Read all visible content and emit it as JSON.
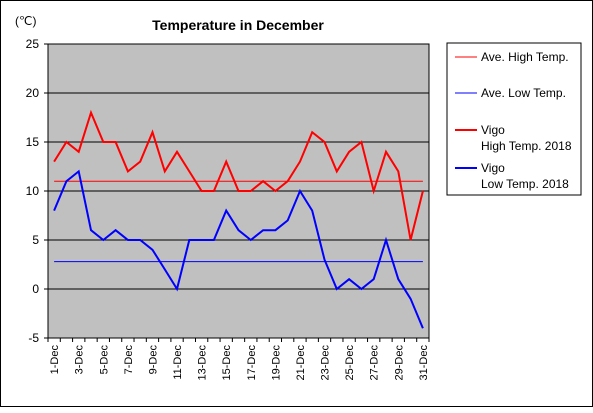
{
  "chart_data": {
    "type": "line",
    "title": "Temperature in December",
    "unit_label": "(℃)",
    "ylim": [
      -5,
      25
    ],
    "yticks": [
      "25",
      "20",
      "15",
      "10",
      "5",
      "0",
      "-5"
    ],
    "ytick_values": [
      25,
      20,
      15,
      10,
      5,
      0,
      -5
    ],
    "grid": "horizontal",
    "legend_position": "right",
    "plot_background": "#c0c0c0",
    "categories": [
      "1-Dec",
      "2-Dec",
      "3-Dec",
      "4-Dec",
      "5-Dec",
      "6-Dec",
      "7-Dec",
      "8-Dec",
      "9-Dec",
      "10-Dec",
      "11-Dec",
      "12-Dec",
      "13-Dec",
      "14-Dec",
      "15-Dec",
      "16-Dec",
      "17-Dec",
      "18-Dec",
      "19-Dec",
      "20-Dec",
      "21-Dec",
      "22-Dec",
      "23-Dec",
      "24-Dec",
      "25-Dec",
      "26-Dec",
      "27-Dec",
      "28-Dec",
      "29-Dec",
      "30-Dec",
      "31-Dec"
    ],
    "xtick_labels": [
      "1-Dec",
      "3-Dec",
      "5-Dec",
      "7-Dec",
      "9-Dec",
      "11-Dec",
      "13-Dec",
      "15-Dec",
      "17-Dec",
      "19-Dec",
      "21-Dec",
      "23-Dec",
      "25-Dec",
      "27-Dec",
      "29-Dec",
      "31-Dec"
    ],
    "xtick_indices": [
      0,
      2,
      4,
      6,
      8,
      10,
      12,
      14,
      16,
      18,
      20,
      22,
      24,
      26,
      28,
      30
    ],
    "series": [
      {
        "name": "Ave. High Temp.",
        "legend_lines": [
          "Ave. High Temp."
        ],
        "color": "#ff0000",
        "thick": false,
        "values": [
          11,
          11,
          11,
          11,
          11,
          11,
          11,
          11,
          11,
          11,
          11,
          11,
          11,
          11,
          11,
          11,
          11,
          11,
          11,
          11,
          11,
          11,
          11,
          11,
          11,
          11,
          11,
          11,
          11,
          11,
          11
        ]
      },
      {
        "name": "Ave. Low Temp.",
        "legend_lines": [
          "Ave. Low Temp."
        ],
        "color": "#0000ff",
        "thick": false,
        "values": [
          2.8,
          2.8,
          2.8,
          2.8,
          2.8,
          2.8,
          2.8,
          2.8,
          2.8,
          2.8,
          2.8,
          2.8,
          2.8,
          2.8,
          2.8,
          2.8,
          2.8,
          2.8,
          2.8,
          2.8,
          2.8,
          2.8,
          2.8,
          2.8,
          2.8,
          2.8,
          2.8,
          2.8,
          2.8,
          2.8,
          2.8
        ]
      },
      {
        "name": "Vigo High Temp. 2018",
        "legend_lines": [
          "Vigo",
          "High Temp. 2018"
        ],
        "color": "#ff0000",
        "thick": true,
        "values": [
          13,
          15,
          14,
          18,
          15,
          15,
          12,
          13,
          16,
          12,
          14,
          12,
          10,
          10,
          13,
          10,
          10,
          11,
          10,
          11,
          13,
          16,
          15,
          12,
          14,
          15,
          10,
          14,
          12,
          5,
          10
        ]
      },
      {
        "name": "Vigo Low Temp. 2018",
        "legend_lines": [
          "Vigo",
          "Low Temp. 2018"
        ],
        "color": "#0000ff",
        "thick": true,
        "values": [
          8,
          11,
          12,
          6,
          5,
          6,
          5,
          5,
          4,
          2,
          0,
          5,
          5,
          5,
          8,
          6,
          5,
          6,
          6,
          7,
          10,
          8,
          3,
          0,
          1,
          0,
          1,
          5,
          1,
          -1,
          -4
        ]
      }
    ]
  }
}
